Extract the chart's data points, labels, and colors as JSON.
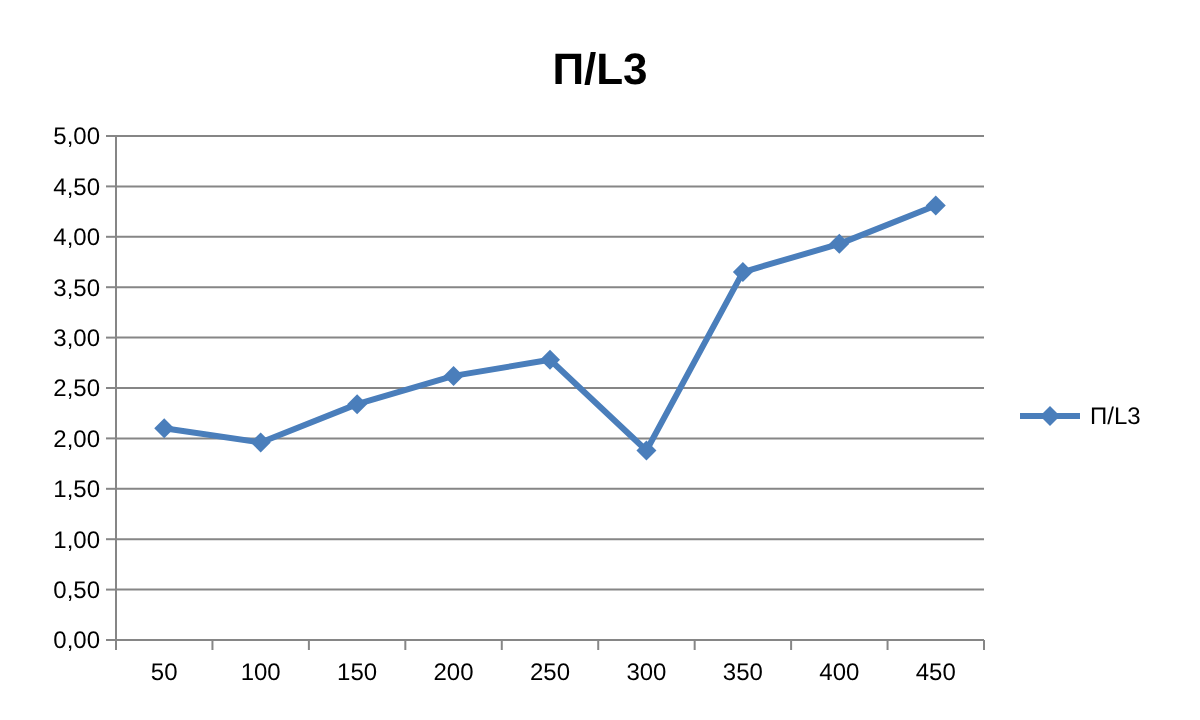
{
  "chart_data": {
    "type": "line",
    "title": "П/L3",
    "categories": [
      "50",
      "100",
      "150",
      "200",
      "250",
      "300",
      "350",
      "400",
      "450"
    ],
    "series": [
      {
        "name": "П/L3",
        "color": "#4a7ebb",
        "values": [
          2.1,
          1.96,
          2.34,
          2.62,
          2.78,
          1.88,
          3.65,
          3.93,
          4.31
        ]
      }
    ],
    "ylim": [
      0,
      5
    ],
    "yticks": [
      {
        "value": 0,
        "label": "0,00"
      },
      {
        "value": 0.5,
        "label": "0,50"
      },
      {
        "value": 1,
        "label": "1,00"
      },
      {
        "value": 1.5,
        "label": "1,50"
      },
      {
        "value": 2,
        "label": "2,00"
      },
      {
        "value": 2.5,
        "label": "2,50"
      },
      {
        "value": 3,
        "label": "3,00"
      },
      {
        "value": 3.5,
        "label": "3,50"
      },
      {
        "value": 4,
        "label": "4,00"
      },
      {
        "value": 4.5,
        "label": "4,50"
      },
      {
        "value": 5,
        "label": "5,00"
      }
    ],
    "grid": "y",
    "legend": "right",
    "marker": "diamond",
    "line_style": "solid"
  }
}
